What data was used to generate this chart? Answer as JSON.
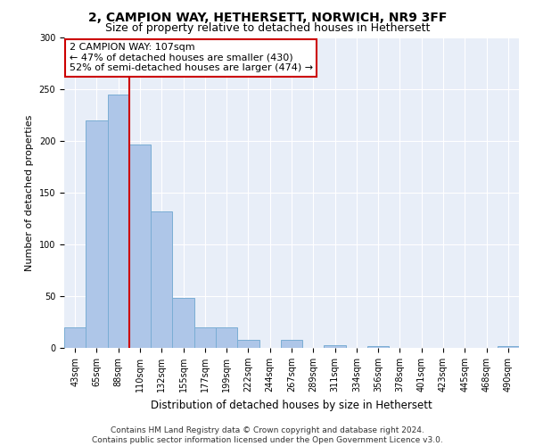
{
  "title": "2, CAMPION WAY, HETHERSETT, NORWICH, NR9 3FF",
  "subtitle": "Size of property relative to detached houses in Hethersett",
  "xlabel": "Distribution of detached houses by size in Hethersett",
  "ylabel": "Number of detached properties",
  "bar_labels": [
    "43sqm",
    "65sqm",
    "88sqm",
    "110sqm",
    "132sqm",
    "155sqm",
    "177sqm",
    "199sqm",
    "222sqm",
    "244sqm",
    "267sqm",
    "289sqm",
    "311sqm",
    "334sqm",
    "356sqm",
    "378sqm",
    "401sqm",
    "423sqm",
    "445sqm",
    "468sqm",
    "490sqm"
  ],
  "bar_values": [
    20,
    220,
    245,
    197,
    132,
    48,
    20,
    20,
    8,
    0,
    8,
    0,
    3,
    0,
    2,
    0,
    0,
    0,
    0,
    0,
    2
  ],
  "bar_color": "#aec6e8",
  "bar_edgecolor": "#7aadd4",
  "background_color": "#e8eef8",
  "vline_x": 2.5,
  "vline_color": "#cc0000",
  "annotation_text": "2 CAMPION WAY: 107sqm\n← 47% of detached houses are smaller (430)\n52% of semi-detached houses are larger (474) →",
  "annotation_box_color": "#ffffff",
  "annotation_box_edgecolor": "#cc0000",
  "ylim": [
    0,
    300
  ],
  "yticks": [
    0,
    50,
    100,
    150,
    200,
    250,
    300
  ],
  "footer_text": "Contains HM Land Registry data © Crown copyright and database right 2024.\nContains public sector information licensed under the Open Government Licence v3.0.",
  "title_fontsize": 10,
  "subtitle_fontsize": 9,
  "xlabel_fontsize": 8.5,
  "ylabel_fontsize": 8,
  "tick_fontsize": 7,
  "annotation_fontsize": 8,
  "footer_fontsize": 6.5
}
